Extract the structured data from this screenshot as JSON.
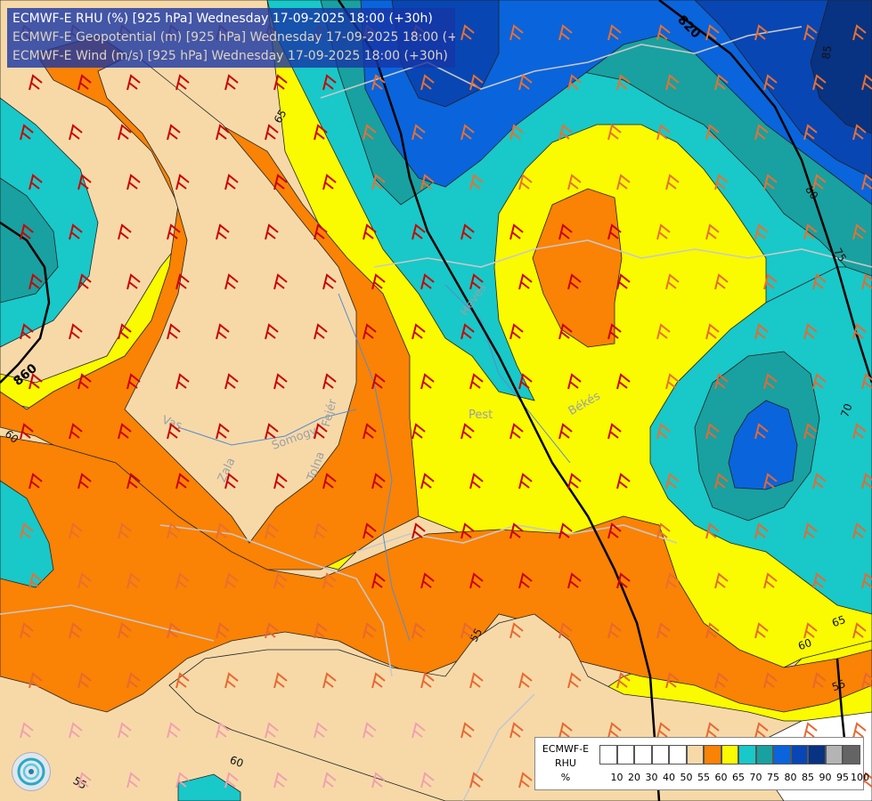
{
  "title": {
    "line1": "ECMWF-E RHU (%) [925 hPa] Wednesday 17-09-2025 18:00 (+30h)",
    "line2": "ECMWF-E Geopotential (m) [925 hPa] Wednesday 17-09-2025 18:00 (+30h)",
    "line3": "ECMWF-E Wind (m/s) [925 hPa] Wednesday 17-09-2025 18:00 (+30h)"
  },
  "legend": {
    "title1": "ECMWF-E",
    "title2": "RHU",
    "unit": "%",
    "colors": [
      "#ffffff",
      "#ffffff",
      "#ffffff",
      "#ffffff",
      "#ffffff",
      "#f7d9a8",
      "#fa8205",
      "#fafa00",
      "#19c8c8",
      "#19a0a0",
      "#0a64dc",
      "#0846b4",
      "#083282",
      "#b4b4b4",
      "#646464"
    ],
    "ticks": [
      "10",
      "20",
      "30",
      "40",
      "50",
      "55",
      "60",
      "65",
      "70",
      "75",
      "80",
      "85",
      "90",
      "95",
      "100"
    ]
  },
  "contour_labels": {
    "geo_820": "820",
    "geo_860": "860",
    "rhu_65_a": "65",
    "rhu_65_b": "65",
    "rhu_60_a": "60",
    "rhu_60_b": "60",
    "rhu_60_c": "60",
    "rhu_55_a": "55",
    "rhu_55_b": "55",
    "rhu_55_c": "55",
    "rhu_70": "70",
    "rhu_75": "75",
    "rhu_80": "80",
    "rhu_85": "85"
  },
  "places": {
    "pest": "Pest",
    "bekes": "Békés",
    "heves": "Heves",
    "vas": "Vas",
    "zala": "Zala",
    "somogy": "Somogy",
    "fejer": "Fejér",
    "tolna": "Tolna"
  }
}
